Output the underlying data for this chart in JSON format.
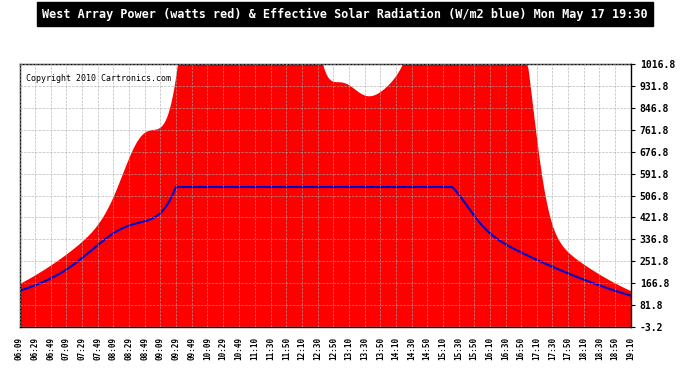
{
  "title": "West Array Power (watts red) & Effective Solar Radiation (W/m2 blue) Mon May 17 19:30",
  "copyright": "Copyright 2010 Cartronics.com",
  "ylabel_right_ticks": [
    1016.8,
    931.8,
    846.8,
    761.8,
    676.8,
    591.8,
    506.8,
    421.8,
    336.8,
    251.8,
    166.8,
    81.8,
    -3.2
  ],
  "ylim": [
    -3.2,
    1016.8
  ],
  "bg_color": "#ffffff",
  "grid_color": "#aaaaaa",
  "fill_color": "#ff0000",
  "line_color": "#0000cc",
  "title_bg": "#000000",
  "title_fg": "#ffffff",
  "x_tick_labels": [
    "06:09",
    "06:29",
    "06:49",
    "07:09",
    "07:29",
    "07:49",
    "08:09",
    "08:29",
    "08:49",
    "09:09",
    "09:29",
    "09:49",
    "10:09",
    "10:29",
    "10:49",
    "11:10",
    "11:30",
    "11:50",
    "12:10",
    "12:30",
    "12:50",
    "13:10",
    "13:30",
    "13:50",
    "14:10",
    "14:30",
    "14:50",
    "15:10",
    "15:30",
    "15:50",
    "16:10",
    "16:30",
    "16:50",
    "17:10",
    "17:30",
    "17:50",
    "18:10",
    "18:30",
    "18:50",
    "19:10"
  ]
}
